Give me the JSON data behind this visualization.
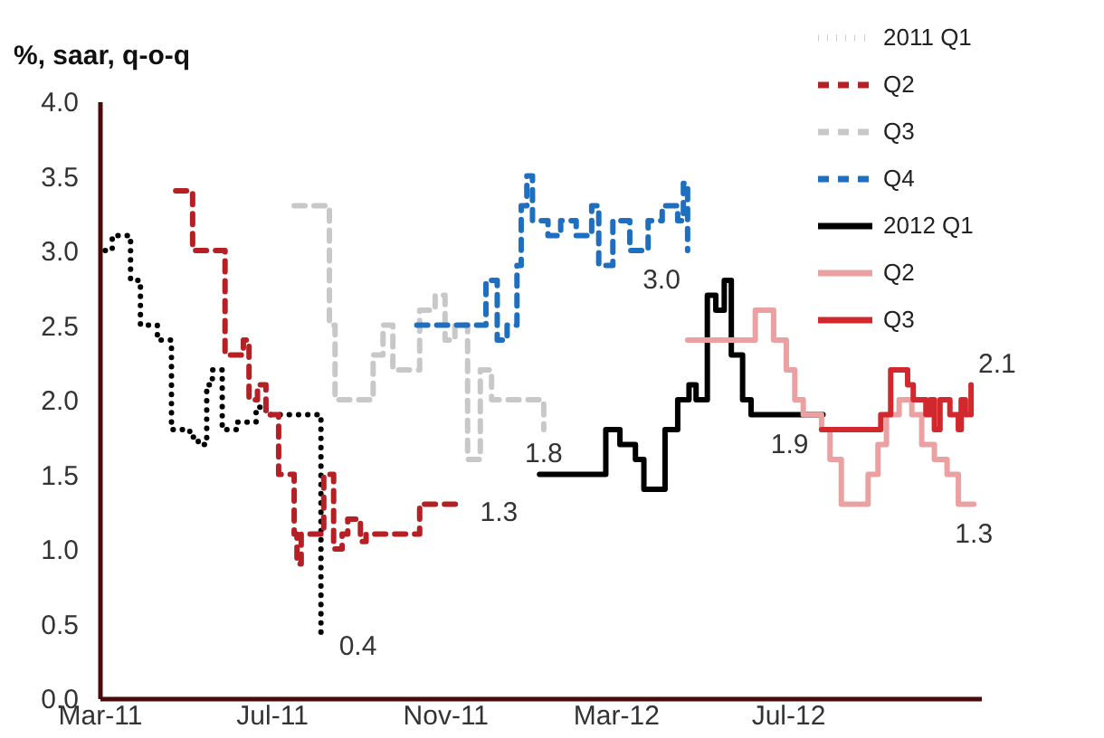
{
  "chart_data": {
    "type": "step",
    "ylabel": "%, saar, q-o-q",
    "xlim": [
      "2011-03-01",
      "2012-11-15"
    ],
    "xticks": [
      {
        "value": "2011-03-01",
        "label": "Mar-11"
      },
      {
        "value": "2011-07-01",
        "label": "Jul-11"
      },
      {
        "value": "2011-11-01",
        "label": "Nov-11"
      },
      {
        "value": "2012-03-01",
        "label": "Mar-12"
      },
      {
        "value": "2012-07-01",
        "label": "Jul-12"
      }
    ],
    "ylim": [
      0,
      4
    ],
    "yticks": [
      {
        "value": 0,
        "label": "0.0"
      },
      0.5,
      {
        "value": 1,
        "label": "1.0"
      },
      1.5,
      {
        "value": 2,
        "label": "2.0"
      },
      2.5,
      {
        "value": 3,
        "label": "3.0"
      },
      3.5,
      {
        "value": 4,
        "label": "4.0"
      }
    ],
    "grid": false,
    "legend": "top right",
    "marker": "none",
    "series": [
      {
        "name": "2011 Q1",
        "color": "#000000",
        "line_style": "dotted",
        "x": [
          "2011-03-05",
          "2011-03-10",
          "2011-03-23",
          "2011-03-30",
          "2011-04-11",
          "2011-04-21",
          "2011-05-04",
          "2011-05-10",
          "2011-05-16",
          "2011-05-20",
          "2011-05-27",
          "2011-06-06",
          "2011-06-20",
          "2011-06-27",
          "2011-08-03",
          "2011-08-05"
        ],
        "values": [
          3.0,
          3.1,
          2.8,
          2.5,
          2.4,
          1.8,
          1.75,
          1.7,
          2.1,
          2.2,
          1.8,
          1.85,
          1.95,
          1.9,
          1.9,
          0.4
        ]
      },
      {
        "name": "Q2",
        "color": "#b52025",
        "line_style": "dashed",
        "x": [
          "2011-04-24",
          "2011-05-06",
          "2011-05-29",
          "2011-06-11",
          "2011-06-15",
          "2011-06-21",
          "2011-06-27",
          "2011-07-06",
          "2011-07-17",
          "2011-07-19",
          "2011-07-22",
          "2011-07-25",
          "2011-08-07",
          "2011-08-14",
          "2011-08-20",
          "2011-08-24",
          "2011-09-02",
          "2011-09-06",
          "2011-09-18",
          "2011-10-14",
          "2011-11-13"
        ],
        "values": [
          3.4,
          3.0,
          2.3,
          2.4,
          2.0,
          2.1,
          1.9,
          1.5,
          1.1,
          0.9,
          1.1,
          1.1,
          1.5,
          1.0,
          1.1,
          1.2,
          1.05,
          1.1,
          1.1,
          1.3,
          1.3
        ]
      },
      {
        "name": "Q3",
        "color": "#c8c8c8",
        "line_style": "dashed",
        "x": [
          "2011-07-17",
          "2011-08-11",
          "2011-08-15",
          "2011-09-11",
          "2011-09-18",
          "2011-09-25",
          "2011-10-14",
          "2011-10-25",
          "2011-11-01",
          "2011-11-08",
          "2011-11-17",
          "2011-11-26",
          "2011-12-04",
          "2011-12-25",
          "2012-01-10"
        ],
        "values": [
          3.3,
          2.5,
          2.0,
          2.3,
          2.5,
          2.2,
          2.6,
          2.7,
          2.4,
          2.5,
          1.6,
          2.2,
          2.0,
          2.0,
          1.8
        ]
      },
      {
        "name": "Q4",
        "color": "#1f6fc0",
        "line_style": "dashed",
        "x": [
          "2011-10-12",
          "2011-11-23",
          "2011-11-30",
          "2011-12-08",
          "2011-12-15",
          "2011-12-22",
          "2011-12-25",
          "2011-12-29",
          "2012-01-02",
          "2012-01-13",
          "2012-01-22",
          "2012-02-02",
          "2012-02-13",
          "2012-02-18",
          "2012-02-28",
          "2012-03-11",
          "2012-03-24",
          "2012-04-03",
          "2012-04-14",
          "2012-04-18",
          "2012-04-21"
        ],
        "values": [
          2.5,
          2.5,
          2.8,
          2.4,
          2.5,
          2.9,
          3.3,
          3.5,
          3.2,
          3.1,
          3.2,
          3.1,
          3.3,
          2.9,
          3.2,
          3.0,
          3.2,
          3.3,
          3.2,
          3.45,
          3.0
        ]
      },
      {
        "name": "2012 Q1",
        "color": "#000000",
        "line_style": "solid",
        "x": [
          "2012-01-07",
          "2012-02-23",
          "2012-03-04",
          "2012-03-15",
          "2012-03-21",
          "2012-04-05",
          "2012-04-14",
          "2012-04-22",
          "2012-04-27",
          "2012-05-05",
          "2012-05-11",
          "2012-05-17",
          "2012-05-22",
          "2012-05-30",
          "2012-06-05",
          "2012-07-26"
        ],
        "values": [
          1.5,
          1.8,
          1.7,
          1.6,
          1.4,
          1.8,
          2.0,
          2.1,
          2.0,
          2.7,
          2.6,
          2.8,
          2.3,
          2.0,
          1.9,
          1.9
        ]
      },
      {
        "name": "Q2",
        "color": "#eba1a1",
        "line_style": "solid",
        "x": [
          "2012-04-21",
          "2012-06-08",
          "2012-06-21",
          "2012-06-30",
          "2012-07-06",
          "2012-07-12",
          "2012-07-25",
          "2012-07-31",
          "2012-08-08",
          "2012-08-27",
          "2012-09-03",
          "2012-09-09",
          "2012-09-18",
          "2012-09-27",
          "2012-10-04",
          "2012-10-13",
          "2012-10-22",
          "2012-10-30",
          "2012-11-10"
        ],
        "values": [
          2.4,
          2.6,
          2.4,
          2.2,
          2.0,
          1.9,
          1.8,
          1.6,
          1.3,
          1.5,
          1.7,
          1.9,
          2.0,
          1.9,
          1.7,
          1.6,
          1.5,
          1.3,
          1.3
        ]
      },
      {
        "name": "Q3",
        "color": "#d0282d",
        "line_style": "solid",
        "x": [
          "2012-07-25",
          "2012-09-05",
          "2012-09-12",
          "2012-09-24",
          "2012-09-28",
          "2012-10-07",
          "2012-10-10",
          "2012-10-13",
          "2012-10-17",
          "2012-10-24",
          "2012-10-30",
          "2012-11-01",
          "2012-11-04",
          "2012-11-08"
        ],
        "values": [
          1.8,
          1.9,
          2.2,
          2.1,
          2.0,
          1.9,
          2.0,
          1.8,
          2.0,
          1.9,
          1.8,
          2.0,
          1.9,
          2.1
        ]
      }
    ],
    "annotations": [
      {
        "text": "0.4",
        "x": "2011-08-05",
        "y": 0.4
      },
      {
        "text": "1.3",
        "x": "2011-11-13",
        "y": 1.3
      },
      {
        "text": "1.8",
        "x": "2012-01-10",
        "y": 1.8
      },
      {
        "text": "3.0",
        "x": "2012-04-21",
        "y": 3.0
      },
      {
        "text": "1.9",
        "x": "2012-07-26",
        "y": 1.9
      },
      {
        "text": "1.3",
        "x": "2012-11-10",
        "y": 1.3
      },
      {
        "text": "2.1",
        "x": "2012-11-08",
        "y": 2.1
      }
    ]
  }
}
